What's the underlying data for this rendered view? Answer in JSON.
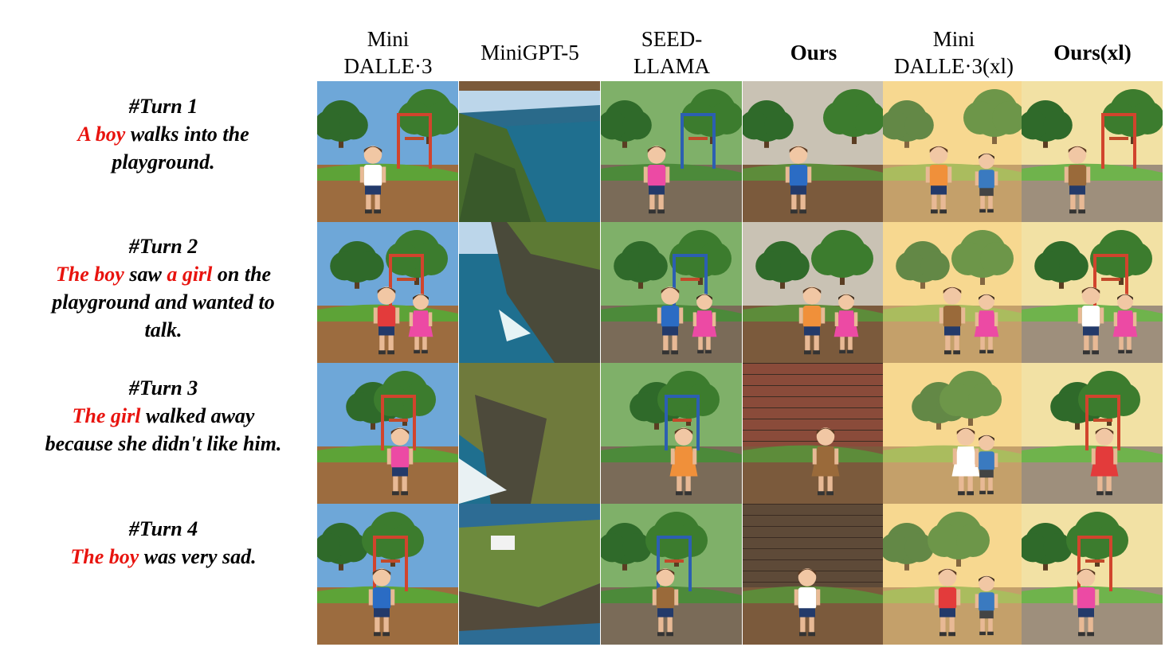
{
  "columns": [
    {
      "lines": [
        "Mini",
        "DALLE·3"
      ],
      "bold": false
    },
    {
      "lines": [
        "MiniGPT-5"
      ],
      "bold": false
    },
    {
      "lines": [
        "SEED-",
        "LLAMA"
      ],
      "bold": false
    },
    {
      "lines": [
        "Ours"
      ],
      "bold": true
    },
    {
      "lines": [
        "Mini",
        "DALLE·3(xl)"
      ],
      "bold": false
    },
    {
      "lines": [
        "Ours(xl)"
      ],
      "bold": true
    }
  ],
  "turns": [
    {
      "label": "#Turn 1",
      "lines": [
        [
          {
            "text": "A boy",
            "red": true
          },
          {
            "text": " walks into the",
            "red": false
          }
        ],
        [
          {
            "text": "playground.",
            "red": false
          }
        ]
      ]
    },
    {
      "label": "#Turn 2",
      "lines": [
        [
          {
            "text": "The boy",
            "red": true
          },
          {
            "text": " saw ",
            "red": false
          },
          {
            "text": "a girl",
            "red": true
          },
          {
            "text": " on the",
            "red": false
          }
        ],
        [
          {
            "text": "playground and wanted to",
            "red": false
          }
        ],
        [
          {
            "text": "talk.",
            "red": false
          }
        ]
      ]
    },
    {
      "label": "#Turn 3",
      "lines": [
        [
          {
            "text": "The girl",
            "red": true
          },
          {
            "text": " walked away",
            "red": false
          }
        ],
        [
          {
            "text": "because she didn't like him.",
            "red": false
          }
        ]
      ]
    },
    {
      "label": "#Turn 4",
      "lines": [
        [
          {
            "text": "The boy",
            "red": true
          },
          {
            "text": " was very sad.",
            "red": false
          }
        ]
      ]
    }
  ],
  "colors": {
    "highlight": "#e8130e",
    "text": "#000000"
  }
}
